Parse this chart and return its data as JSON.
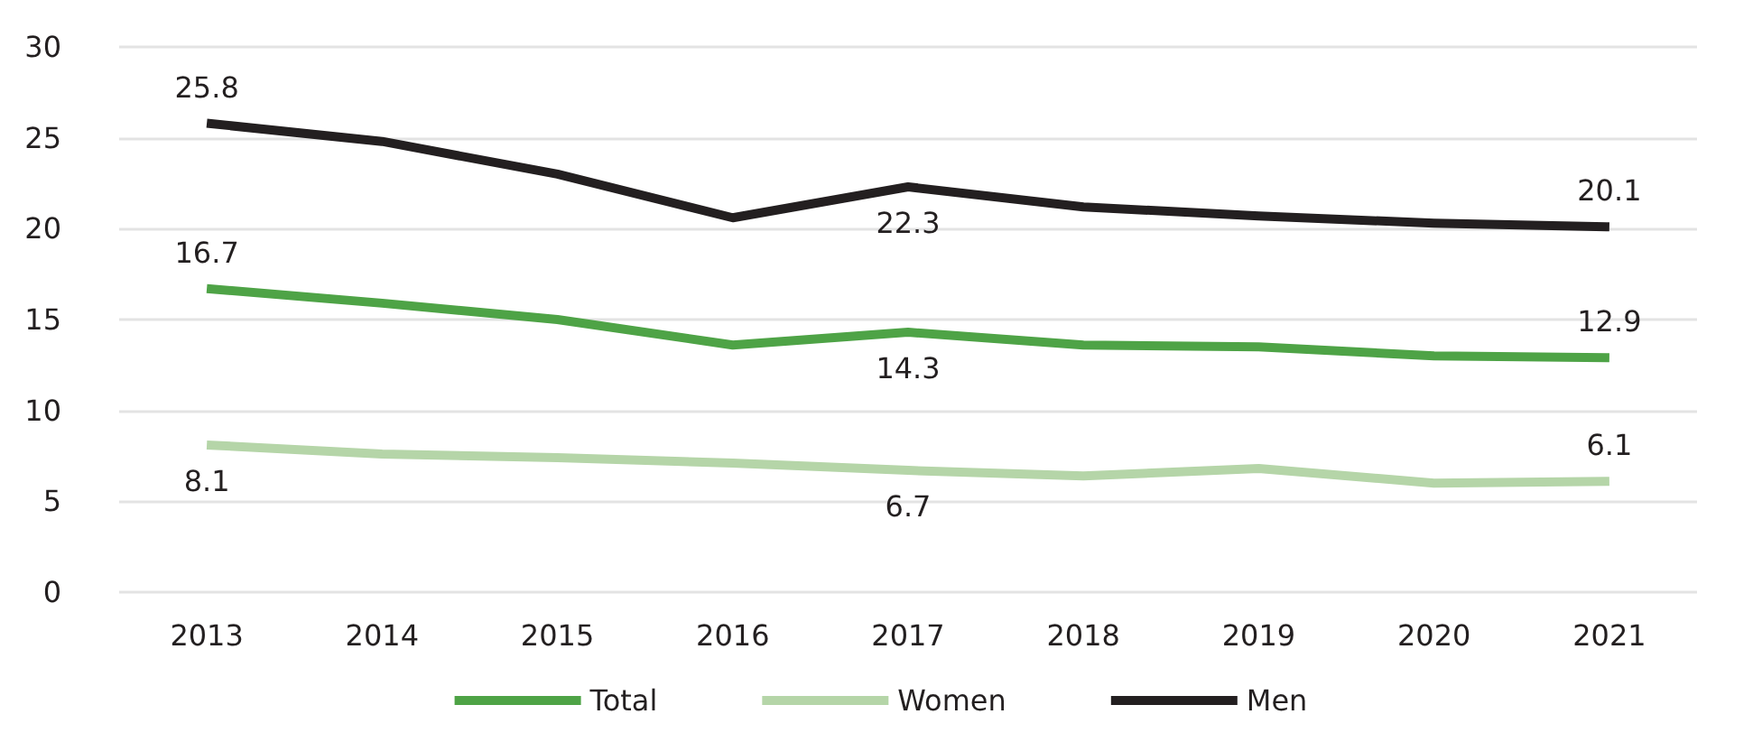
{
  "chart_data": {
    "type": "line",
    "categories": [
      "2013",
      "2014",
      "2015",
      "2016",
      "2017",
      "2018",
      "2019",
      "2020",
      "2021"
    ],
    "series": [
      {
        "name": "Total",
        "color": "#4ea346",
        "values": [
          16.7,
          15.9,
          15.0,
          13.6,
          14.3,
          13.6,
          13.5,
          13.0,
          12.9
        ],
        "value_labels": [
          "16.7",
          null,
          null,
          null,
          "14.3",
          null,
          null,
          null,
          "12.9"
        ]
      },
      {
        "name": "Women",
        "color": "#b5d5a8",
        "values": [
          8.1,
          7.6,
          7.4,
          7.1,
          6.7,
          6.4,
          6.8,
          6.0,
          6.1
        ],
        "value_labels": [
          "8.1",
          null,
          null,
          null,
          "6.7",
          null,
          null,
          null,
          "6.1"
        ]
      },
      {
        "name": "Men",
        "color": "#231f20",
        "values": [
          25.8,
          24.8,
          23.0,
          20.6,
          22.3,
          21.2,
          20.7,
          20.3,
          20.1
        ],
        "value_labels": [
          "25.8",
          null,
          null,
          null,
          "22.3",
          null,
          null,
          null,
          "20.1"
        ]
      }
    ],
    "ylim": [
      0,
      30
    ],
    "yticks": [
      0,
      5,
      10,
      15,
      20,
      25,
      30
    ],
    "grid": "y",
    "legend": "bottom",
    "marker": "none",
    "line_style": "solid"
  }
}
